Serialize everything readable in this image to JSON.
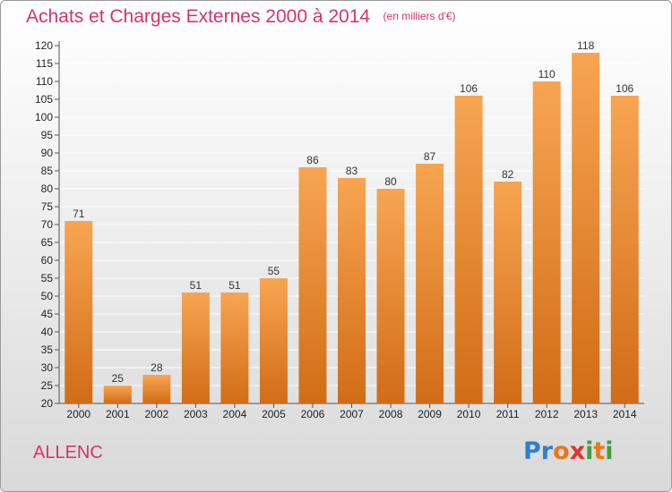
{
  "chart_data": {
    "type": "bar",
    "title": "Achats et Charges Externes 2000 à 2014",
    "subtitle": "(en milliers d'€)",
    "categories": [
      "2000",
      "2001",
      "2002",
      "2003",
      "2004",
      "2005",
      "2006",
      "2007",
      "2008",
      "2009",
      "2010",
      "2011",
      "2012",
      "2013",
      "2014"
    ],
    "values": [
      71,
      25,
      28,
      51,
      51,
      55,
      86,
      83,
      80,
      87,
      106,
      82,
      110,
      118,
      106
    ],
    "ylim": [
      20,
      120
    ],
    "yticks": [
      20,
      25,
      30,
      35,
      40,
      45,
      50,
      55,
      60,
      65,
      70,
      75,
      80,
      85,
      90,
      95,
      100,
      105,
      110,
      115,
      120
    ],
    "xlabel": "",
    "ylabel": "",
    "grid": true,
    "colors": {
      "bar_top": "#f7a552",
      "bar_bottom": "#d26c16",
      "title": "#d6336c",
      "grid": "#ffffff"
    }
  },
  "footer": {
    "town": "ALLENC",
    "brand_letters": [
      {
        "char": "P",
        "color": "#2f7fc9"
      },
      {
        "char": "r",
        "color": "#2f7fc9"
      },
      {
        "char": "o",
        "color": "#e8781a"
      },
      {
        "char": "x",
        "color": "#e0352b"
      },
      {
        "char": "i",
        "color": "#3aa33a"
      },
      {
        "char": "t",
        "color": "#e8781a"
      },
      {
        "char": "i",
        "color": "#3aa33a"
      }
    ]
  }
}
